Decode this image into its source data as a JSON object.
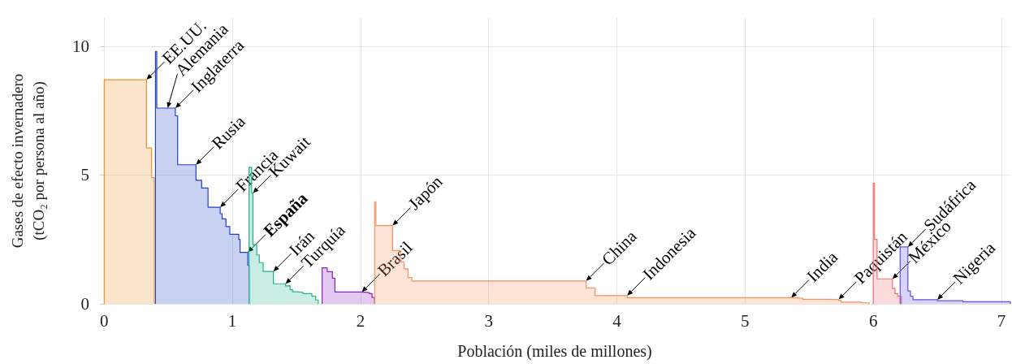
{
  "chart_data": {
    "type": "step",
    "xlabel": "Población (miles de millones)",
    "ylabel": "Gases de efecto invernadero\n(tCO₂ por persona al año)",
    "xlim": [
      -0.04,
      7.07
    ],
    "xticks": [
      0,
      1,
      2,
      3,
      4,
      5,
      6,
      7
    ],
    "ylim": [
      0,
      11.1
    ],
    "yticks": [
      0,
      5,
      10
    ],
    "grid": true,
    "marker": "none",
    "series": [
      {
        "color": "#f0902c",
        "x": [
          0,
          0,
          0.33,
          0.37,
          0.39
        ],
        "values": [
          0,
          8.7,
          6.05,
          4.9,
          0
        ]
      },
      {
        "color": "#2040c8",
        "x": [
          0.4,
          0.4,
          0.41,
          0.495,
          0.555,
          0.573,
          0.716,
          0.76,
          0.81,
          0.905,
          0.92,
          0.95,
          0.98,
          1.05,
          1.06,
          1.12,
          1.13
        ],
        "values": [
          0,
          9.8,
          7.6,
          7.6,
          7.3,
          5.4,
          4.8,
          4.5,
          3.75,
          3.5,
          3.3,
          3.0,
          2.7,
          2.5,
          2.0,
          1.5,
          0
        ]
      },
      {
        "color": "#20b090",
        "x": [
          1.13,
          1.13,
          1.15,
          1.16,
          1.19,
          1.21,
          1.24,
          1.32,
          1.415,
          1.45,
          1.47,
          1.51,
          1.55,
          1.62,
          1.65,
          1.67
        ],
        "values": [
          0,
          5.3,
          4.3,
          2.3,
          1.9,
          1.6,
          1.26,
          0.78,
          0.7,
          0.55,
          0.47,
          0.45,
          0.4,
          0.3,
          0.15,
          0
        ]
      },
      {
        "color": "#8a20c0",
        "x": [
          1.7,
          1.7,
          1.74,
          1.78,
          1.8,
          2.01,
          2.07,
          2.09,
          2.11
        ],
        "values": [
          0,
          1.4,
          1.25,
          1.0,
          0.46,
          0.44,
          0.4,
          0.25,
          0
        ]
      },
      {
        "color": "#f8905c",
        "x": [
          2.11,
          2.11,
          2.12,
          2.25,
          2.31,
          2.34,
          2.37,
          2.4,
          3.76,
          3.83,
          4.08,
          5.36,
          5.45,
          5.54,
          5.73,
          5.75,
          5.91,
          5.97
        ],
        "values": [
          0,
          3.96,
          3.04,
          2.07,
          1.63,
          1.36,
          1.02,
          0.89,
          0.62,
          0.32,
          0.24,
          0.22,
          0.18,
          0.17,
          0.13,
          0.07,
          0.04,
          0
        ]
      },
      {
        "color": "#f07070",
        "x": [
          6.0,
          6.0,
          6.01,
          6.03,
          6.15,
          6.17,
          6.19,
          6.22
        ],
        "values": [
          0,
          4.68,
          2.5,
          0.97,
          0.6,
          0.4,
          0.3,
          0
        ]
      },
      {
        "color": "#6050e0",
        "x": [
          6.21,
          6.21,
          6.27,
          6.29,
          6.31,
          6.5,
          6.7,
          7.07
        ],
        "values": [
          0,
          2.21,
          0.5,
          0.3,
          0.16,
          0.12,
          0.08,
          0
        ]
      }
    ],
    "annotations": [
      {
        "text": "EE.UU.",
        "x": 0.33,
        "y": 8.7
      },
      {
        "text": "Alemania",
        "x": 0.495,
        "y": 7.6
      },
      {
        "text": "Inglaterra",
        "x": 0.555,
        "y": 7.6
      },
      {
        "text": "Rusia",
        "x": 0.716,
        "y": 5.4
      },
      {
        "text": "Francia",
        "x": 0.905,
        "y": 3.75
      },
      {
        "text": "Kuwait",
        "x": 1.16,
        "y": 4.3
      },
      {
        "text": "España",
        "x": 1.12,
        "y": 2.0
      },
      {
        "text": "Irán",
        "x": 1.32,
        "y": 1.26
      },
      {
        "text": "Turquía",
        "x": 1.415,
        "y": 0.78
      },
      {
        "text": "Brasil",
        "x": 2.01,
        "y": 0.46
      },
      {
        "text": "Japón",
        "x": 2.25,
        "y": 3.04
      },
      {
        "text": "China",
        "x": 3.76,
        "y": 0.89
      },
      {
        "text": "Indonesia",
        "x": 4.08,
        "y": 0.32
      },
      {
        "text": "India",
        "x": 5.36,
        "y": 0.24
      },
      {
        "text": "Paquistán",
        "x": 5.73,
        "y": 0.17
      },
      {
        "text": "México",
        "x": 6.15,
        "y": 0.97
      },
      {
        "text": "Sudáfrica",
        "x": 6.27,
        "y": 2.21
      },
      {
        "text": "Nigeria",
        "x": 6.5,
        "y": 0.16
      }
    ]
  }
}
